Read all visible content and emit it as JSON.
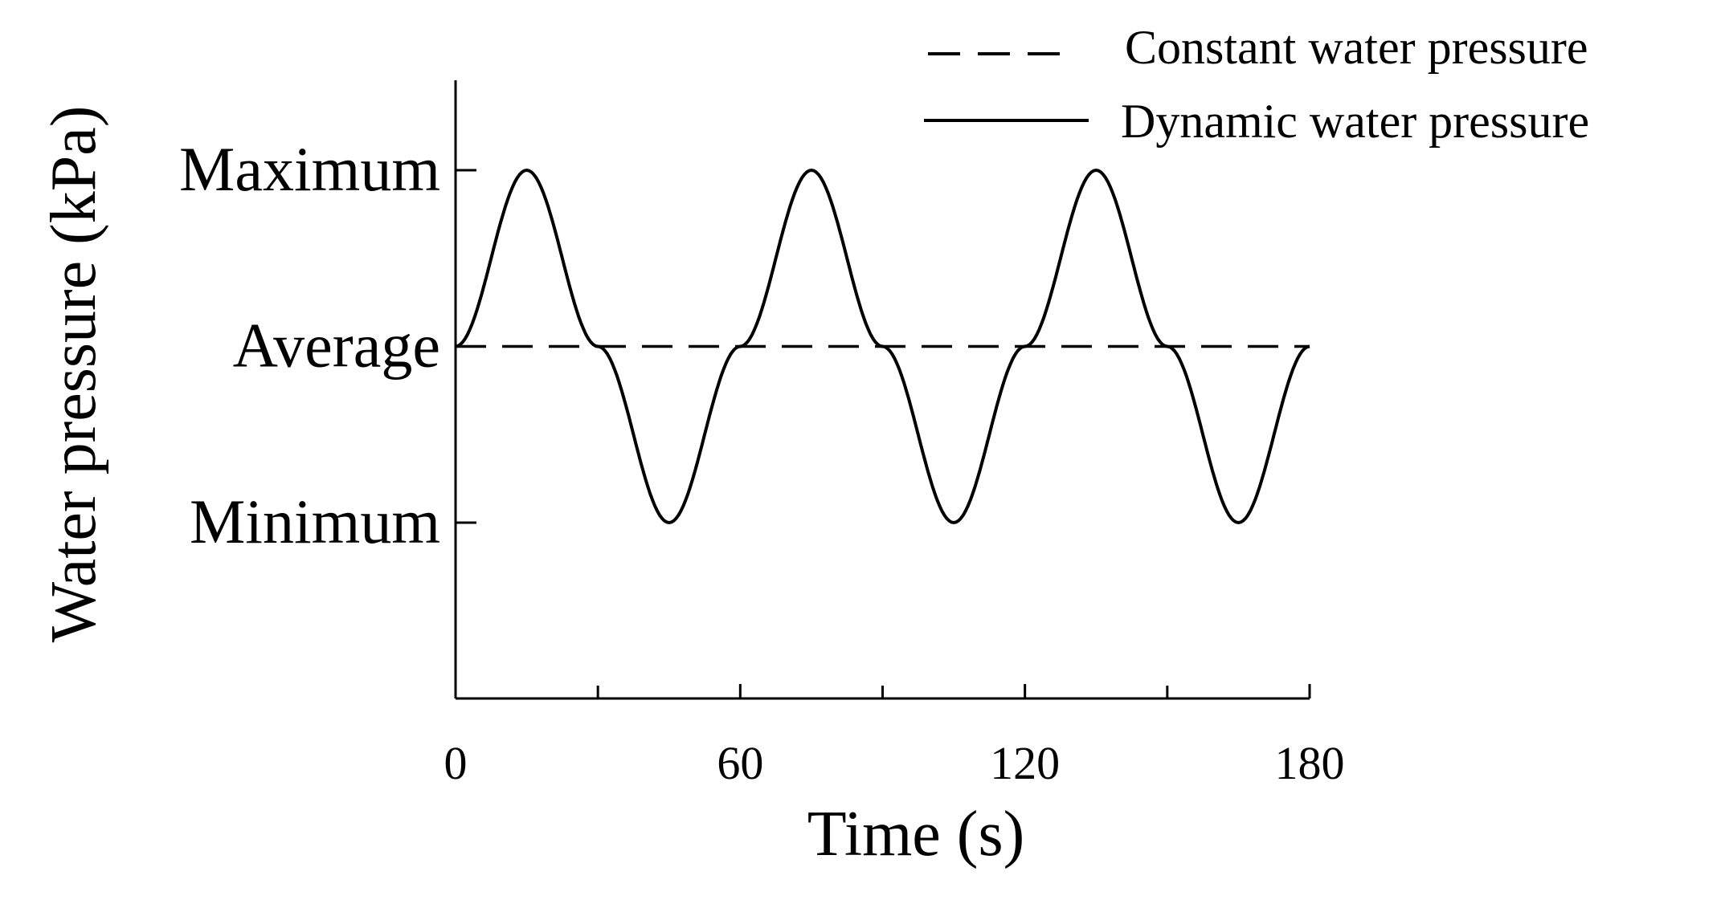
{
  "chart_data": {
    "type": "line",
    "title": "",
    "xlabel": "Time (s)",
    "ylabel": "Water pressure (kPa)",
    "xlim": [
      0,
      180
    ],
    "ylim": [
      -1.5,
      1.5
    ],
    "x_ticks": [
      0,
      60,
      120,
      180
    ],
    "x_minor_ticks": [
      30,
      90,
      150
    ],
    "y_ticks": [
      {
        "value": 1,
        "label": "Maximum"
      },
      {
        "value": 0,
        "label": "Average"
      },
      {
        "value": -1,
        "label": "Minimum"
      }
    ],
    "grid": false,
    "legend_position": "top-right",
    "series": [
      {
        "name": "Constant water pressure",
        "style": "dashed",
        "color": "#000000",
        "x": [
          0,
          180
        ],
        "y": [
          0,
          0
        ]
      },
      {
        "name": "Dynamic water pressure",
        "style": "solid",
        "color": "#000000",
        "x": [
          0,
          15,
          30,
          45,
          60,
          75,
          90,
          105,
          120,
          135,
          150,
          165,
          180
        ],
        "y": [
          0,
          1,
          0,
          -1,
          0,
          1,
          0,
          -1,
          0,
          1,
          0,
          -1,
          0
        ]
      }
    ]
  }
}
